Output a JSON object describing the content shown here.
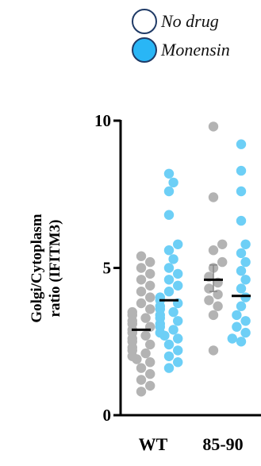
{
  "legend": {
    "items": [
      {
        "label": "No drug",
        "fill": "#ffffff",
        "stroke": "#1f3a66"
      },
      {
        "label": "Monensin",
        "fill": "#29b6f6",
        "stroke": "#1f3a66"
      }
    ]
  },
  "chart_data": {
    "type": "scatter",
    "title": "",
    "ylabel": "Golgi/Cytoplasm ratio (IFITM3)",
    "xlabel": "",
    "ylim": [
      0,
      10
    ],
    "yticks": [
      0,
      5,
      10
    ],
    "ytick_labels": [
      "0",
      "5",
      "10"
    ],
    "categories": [
      "WT",
      "85-90"
    ],
    "legend_position": "top-right",
    "grid": false,
    "series": [
      {
        "name": "No drug",
        "color": "#b3b3b3",
        "groups": [
          {
            "category": "WT",
            "mean": 2.9,
            "values": [
              5.4,
              5.2,
              5.0,
              4.8,
              4.6,
              4.4,
              4.2,
              4.0,
              3.8,
              3.6,
              3.5,
              3.4,
              3.3,
              3.2,
              3.1,
              3.0,
              2.9,
              2.8,
              2.7,
              2.6,
              2.5,
              2.4,
              2.3,
              2.2,
              2.1,
              2.0,
              1.9,
              1.8,
              1.6,
              1.4,
              1.2,
              1.0,
              0.8
            ]
          },
          {
            "category": "85-90",
            "mean": 4.6,
            "values": [
              9.8,
              7.4,
              5.8,
              5.6,
              5.2,
              5.0,
              4.7,
              4.5,
              4.3,
              4.1,
              3.9,
              3.7,
              3.4,
              2.2
            ]
          }
        ]
      },
      {
        "name": "Monensin",
        "color": "#6dcff6",
        "groups": [
          {
            "category": "WT",
            "mean": 3.9,
            "values": [
              8.2,
              7.9,
              7.6,
              6.8,
              5.8,
              5.6,
              5.3,
              5.0,
              4.8,
              4.6,
              4.4,
              4.2,
              4.0,
              3.9,
              3.8,
              3.7,
              3.6,
              3.5,
              3.4,
              3.3,
              3.2,
              3.1,
              3.0,
              2.9,
              2.8,
              2.7,
              2.6,
              2.4,
              2.2,
              2.0,
              1.8,
              1.6
            ]
          },
          {
            "category": "85-90",
            "mean": 4.05,
            "values": [
              9.2,
              8.3,
              7.6,
              6.6,
              5.8,
              5.5,
              5.2,
              4.9,
              4.6,
              4.3,
              4.0,
              3.7,
              3.4,
              3.2,
              3.0,
              2.8,
              2.6,
              2.5
            ]
          }
        ]
      }
    ],
    "error_bars": [
      {
        "series": "No drug",
        "category": "85-90",
        "low": 4.2,
        "high": 5.1
      }
    ]
  }
}
